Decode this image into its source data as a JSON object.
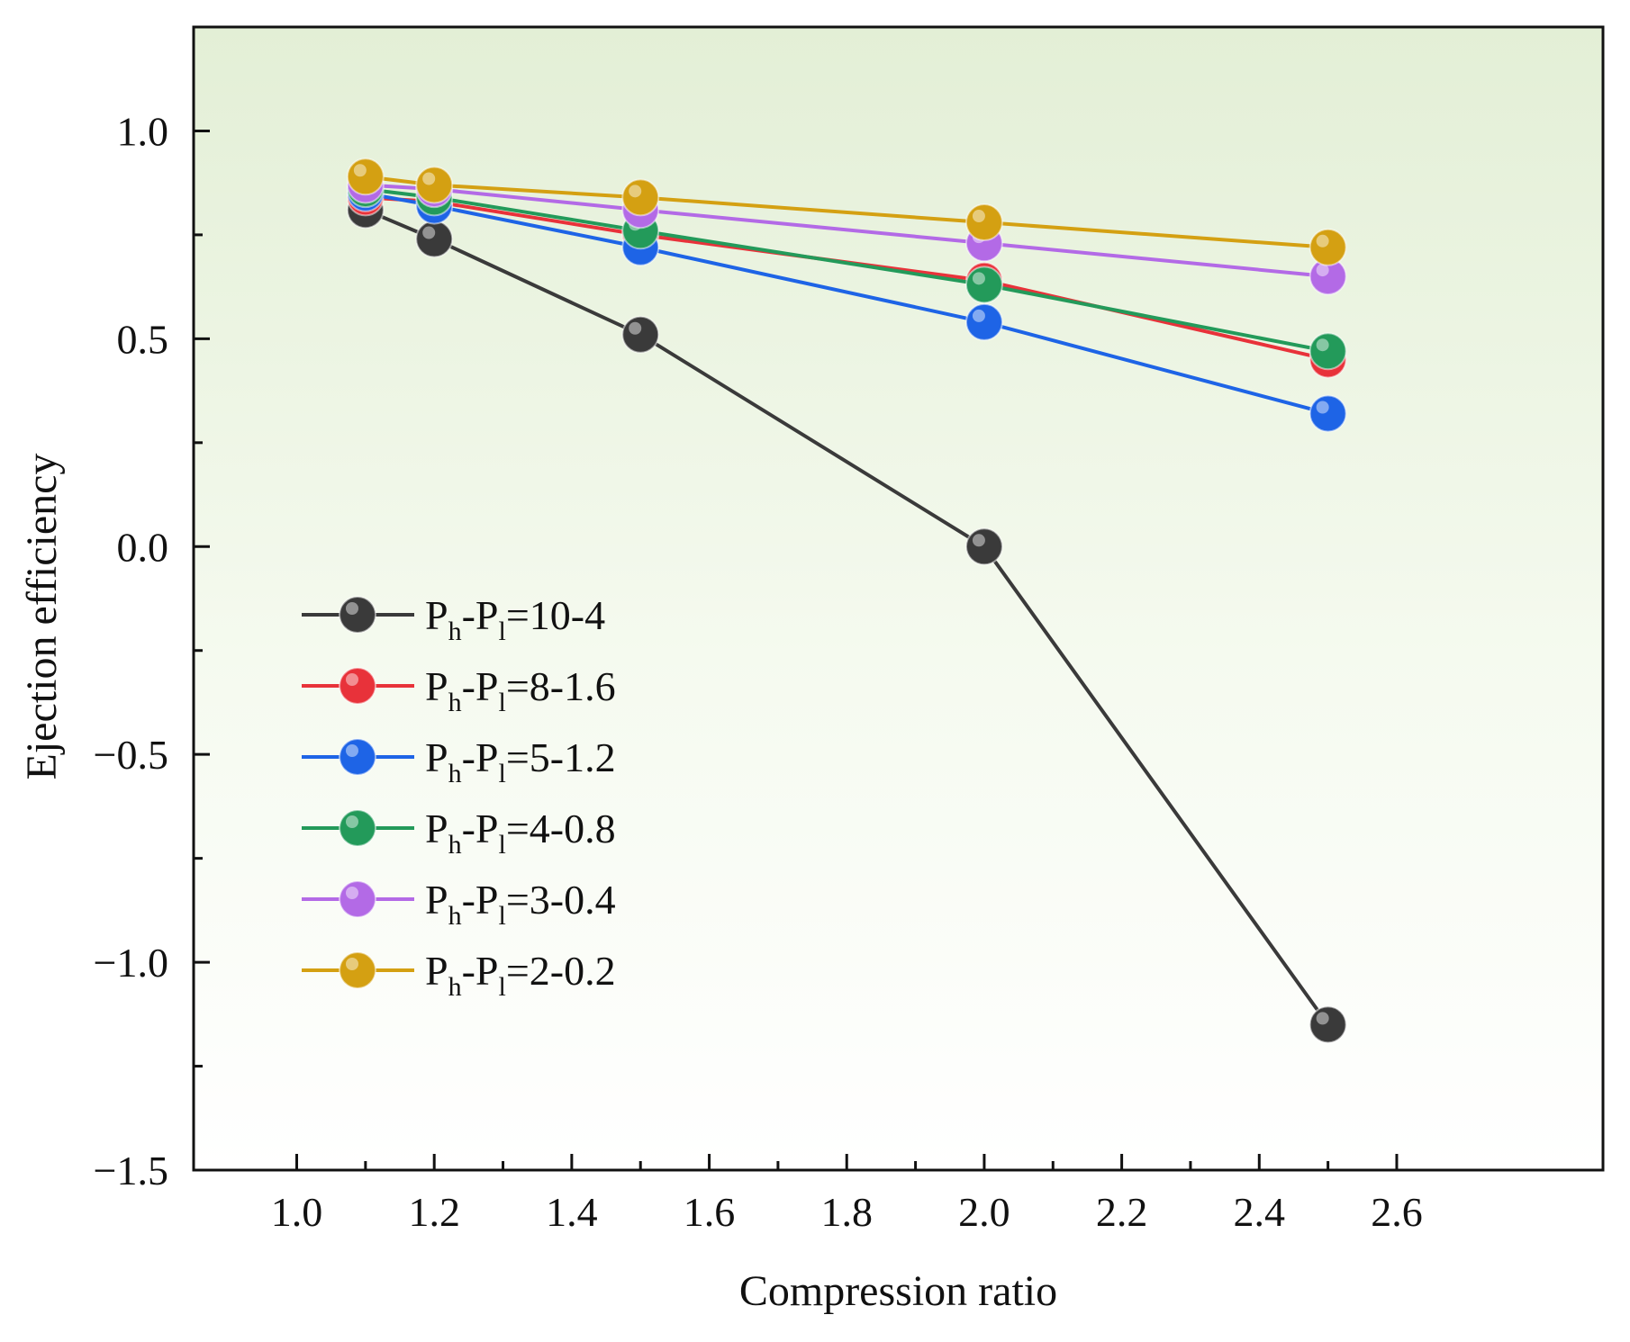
{
  "chart_data": {
    "type": "line",
    "title": "",
    "xlabel": "Compression ratio",
    "ylabel": "Ejection efficiency",
    "xlim": [
      0.85,
      2.9
    ],
    "ylim": [
      -1.5,
      1.25
    ],
    "x_ticks": [
      1.0,
      1.2,
      1.4,
      1.6,
      1.8,
      2.0,
      2.2,
      2.4,
      2.6
    ],
    "x_tick_labels": [
      "1.0",
      "1.2",
      "1.4",
      "1.6",
      "1.8",
      "2.0",
      "2.2",
      "2.4",
      "2.6"
    ],
    "y_ticks": [
      -1.5,
      -1.0,
      -0.5,
      0.0,
      0.5,
      1.0
    ],
    "y_tick_labels": [
      "−1.5",
      "−1.0",
      "−0.5",
      "0.0",
      "0.5",
      "1.0"
    ],
    "grid": false,
    "legend_position": "middle-left",
    "x": [
      1.1,
      1.2,
      1.5,
      2.0,
      2.5
    ],
    "series": [
      {
        "name": "Ph-Pl=10-4",
        "legend": {
          "a": "P",
          "a_sub": "h",
          "b": "-P",
          "b_sub": "l",
          "rest": "=10-4"
        },
        "color": "#3a3a3a",
        "values": [
          0.81,
          0.74,
          0.51,
          0.0,
          -1.15
        ]
      },
      {
        "name": "Ph-Pl=8-1.6",
        "legend": {
          "a": "P",
          "a_sub": "h",
          "b": "-P",
          "b_sub": "l",
          "rest": "=8-1.6"
        },
        "color": "#e8323a",
        "values": [
          0.84,
          0.83,
          0.75,
          0.64,
          0.45
        ]
      },
      {
        "name": "Ph-Pl=5-1.2",
        "legend": {
          "a": "P",
          "a_sub": "h",
          "b": "-P",
          "b_sub": "l",
          "rest": "=5-1.2"
        },
        "color": "#1e64e6",
        "values": [
          0.85,
          0.82,
          0.72,
          0.54,
          0.32
        ]
      },
      {
        "name": "Ph-Pl=4-0.8",
        "legend": {
          "a": "P",
          "a_sub": "h",
          "b": "-P",
          "b_sub": "l",
          "rest": "=4-0.8"
        },
        "color": "#239a5a",
        "values": [
          0.86,
          0.84,
          0.76,
          0.63,
          0.47
        ]
      },
      {
        "name": "Ph-Pl=3-0.4",
        "legend": {
          "a": "P",
          "a_sub": "h",
          "b": "-P",
          "b_sub": "l",
          "rest": "=3-0.4"
        },
        "color": "#b36ae6",
        "values": [
          0.87,
          0.86,
          0.81,
          0.73,
          0.65
        ]
      },
      {
        "name": "Ph-Pl=2-0.2",
        "legend": {
          "a": "P",
          "a_sub": "h",
          "b": "-P",
          "b_sub": "l",
          "rest": "=2-0.2"
        },
        "color": "#d4a012",
        "values": [
          0.89,
          0.87,
          0.84,
          0.78,
          0.72
        ]
      }
    ]
  }
}
